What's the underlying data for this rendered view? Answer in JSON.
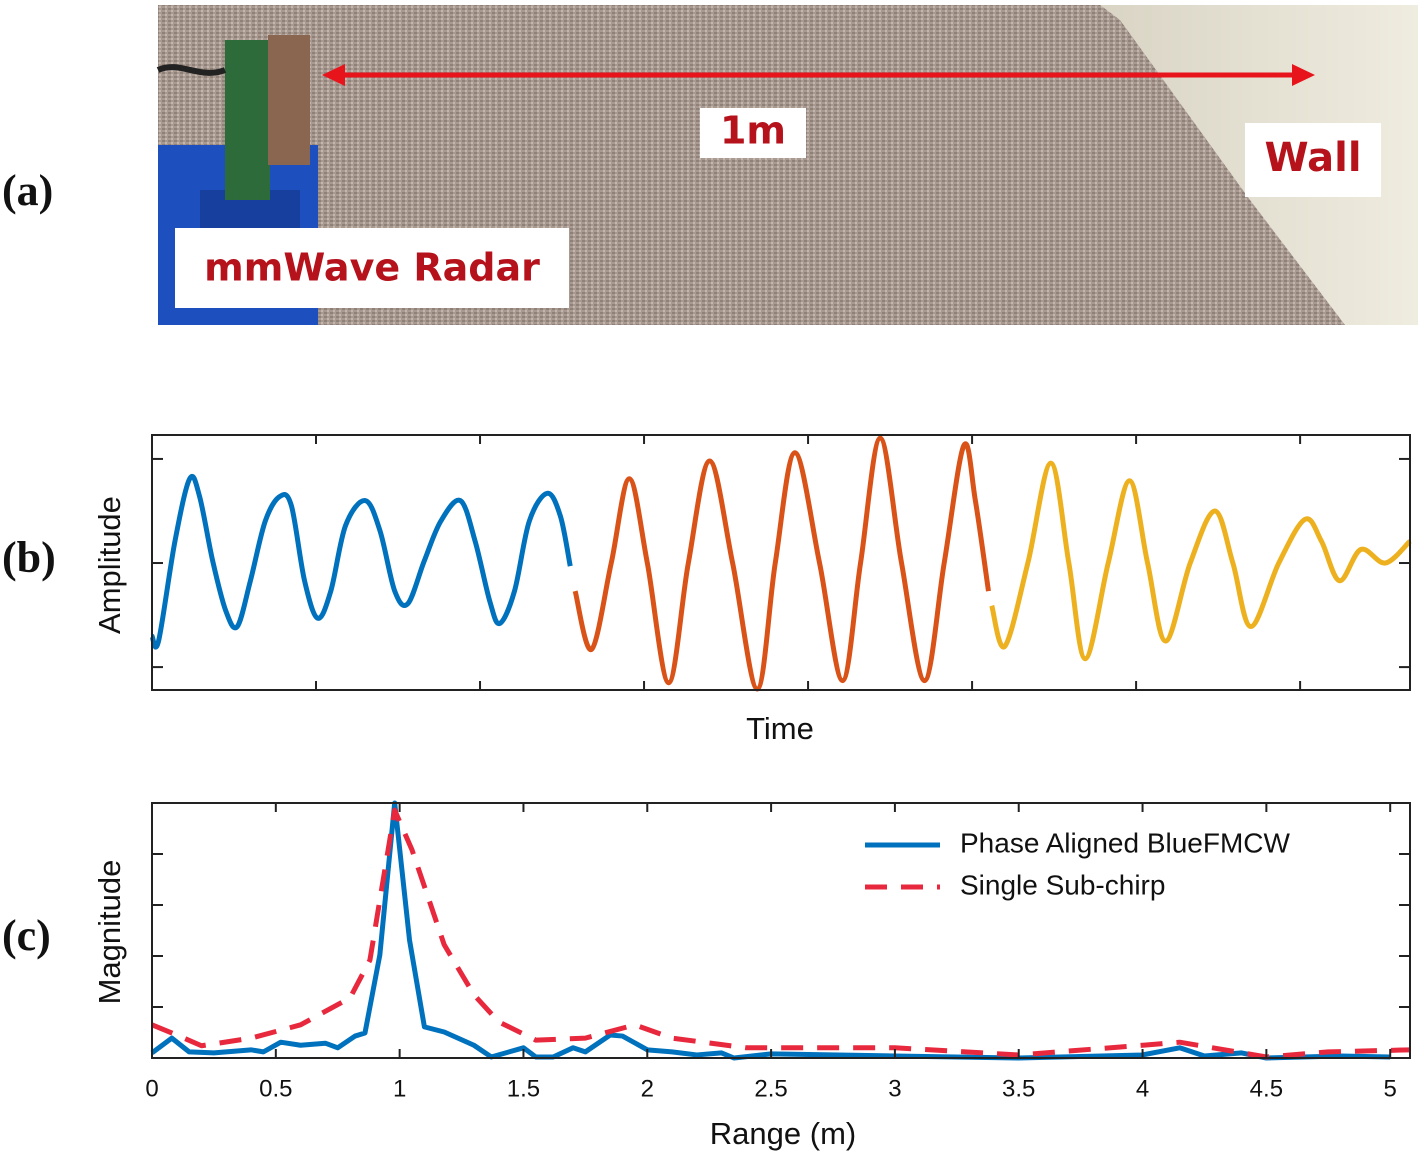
{
  "panel_labels": [
    "(a)",
    "(b)",
    "(c)"
  ],
  "photo": {
    "annotations": {
      "distance": "1m",
      "target": "Wall",
      "device": "mmWave Radar"
    }
  },
  "chart_data": [
    {
      "type": "line",
      "xlabel": "Time",
      "ylabel": "Amplitude",
      "xlim": [
        0,
        7.67
      ],
      "ylim": [
        -1.22,
        1.23
      ],
      "xticks": [
        1,
        2,
        3,
        4,
        5,
        6,
        7
      ],
      "yticks": [
        -1,
        0,
        1
      ],
      "xtick_labels": false,
      "ytick_labels": false,
      "series": [
        {
          "color": "#0072bd",
          "x": [
            0,
            0.04,
            0.14,
            0.23,
            0.29,
            0.37,
            0.45,
            0.52,
            0.6,
            0.69,
            0.78,
            0.85,
            0.93,
            1.01,
            1.09,
            1.18,
            1.3,
            1.39,
            1.48,
            1.56,
            1.66,
            1.76,
            1.88,
            1.97,
            2.06,
            2.12,
            2.21,
            2.3,
            2.41,
            2.49,
            2.55
          ],
          "values": [
            -0.7,
            -0.75,
            0.21,
            0.81,
            0.64,
            0.02,
            -0.46,
            -0.61,
            -0.17,
            0.4,
            0.64,
            0.55,
            -0.17,
            -0.53,
            -0.27,
            0.36,
            0.6,
            0.31,
            -0.27,
            -0.39,
            0.02,
            0.4,
            0.6,
            0.21,
            -0.37,
            -0.58,
            -0.27,
            0.4,
            0.67,
            0.45,
            -0.03
          ]
        },
        {
          "color": "#d95319",
          "x": [
            2.58,
            2.68,
            2.8,
            2.91,
            3.02,
            3.15,
            3.27,
            3.4,
            3.54,
            3.69,
            3.8,
            3.92,
            4.07,
            4.21,
            4.32,
            4.44,
            4.57,
            4.71,
            4.83,
            4.95,
            5.02,
            5.1
          ],
          "values": [
            -0.27,
            -0.83,
            0,
            0.81,
            0,
            -1.15,
            0,
            0.98,
            0,
            -1.21,
            0,
            1.06,
            0,
            -1.13,
            0,
            1.2,
            0,
            -1.13,
            0,
            1.13,
            0.6,
            -0.27
          ]
        },
        {
          "color": "#edb120",
          "x": [
            5.12,
            5.2,
            5.34,
            5.48,
            5.59,
            5.69,
            5.83,
            5.96,
            6.07,
            6.18,
            6.33,
            6.48,
            6.59,
            6.7,
            6.87,
            7.03,
            7.13,
            7.24,
            7.37,
            7.52,
            7.67
          ],
          "values": [
            -0.41,
            -0.8,
            0,
            0.96,
            0,
            -0.92,
            0,
            0.79,
            0,
            -0.75,
            0,
            0.5,
            0,
            -0.61,
            0,
            0.42,
            0.21,
            -0.17,
            0.13,
            0,
            0.21
          ]
        }
      ]
    },
    {
      "type": "line",
      "xlabel": "Range (m)",
      "ylabel": "Magnitude",
      "xlim": [
        0,
        5.08
      ],
      "ylim": [
        0,
        5
      ],
      "xticks": [
        0,
        0.5,
        1,
        1.5,
        2,
        2.5,
        3,
        3.5,
        4,
        4.5,
        5
      ],
      "yticks": [
        1,
        2,
        3,
        4
      ],
      "xtick_labels": true,
      "ytick_labels": false,
      "legend": "upper right",
      "series": [
        {
          "name": "Phase Aligned BlueFMCW",
          "color": "#0072bd",
          "style": "solid",
          "x": [
            0,
            0.08,
            0.15,
            0.25,
            0.4,
            0.45,
            0.52,
            0.6,
            0.7,
            0.75,
            0.82,
            0.86,
            0.92,
            0.98,
            1.04,
            1.1,
            1.18,
            1.3,
            1.37,
            1.5,
            1.55,
            1.62,
            1.7,
            1.75,
            1.85,
            1.9,
            2.0,
            2.1,
            2.2,
            2.3,
            2.35,
            2.5,
            3,
            3.5,
            4,
            4.15,
            4.25,
            4.4,
            4.5,
            4.8,
            5
          ],
          "values": [
            0.1,
            0.39,
            0.12,
            0.1,
            0.16,
            0.12,
            0.31,
            0.25,
            0.29,
            0.2,
            0.43,
            0.49,
            2.02,
            5.0,
            2.31,
            0.61,
            0.51,
            0.25,
            0.02,
            0.2,
            0.02,
            0.02,
            0.2,
            0.12,
            0.45,
            0.43,
            0.16,
            0.12,
            0.06,
            0.1,
            0,
            0.08,
            0.04,
            0,
            0.06,
            0.2,
            0.04,
            0.1,
            0,
            0.04,
            0.02
          ]
        },
        {
          "name": "Single Sub-chirp",
          "color": "#e8283c",
          "style": "dashed",
          "x": [
            0,
            0.1,
            0.2,
            0.4,
            0.6,
            0.8,
            0.88,
            0.98,
            1.05,
            1.18,
            1.3,
            1.4,
            1.55,
            1.75,
            1.95,
            2.1,
            2.4,
            3,
            3.5,
            4,
            4.15,
            4.5,
            4.75,
            5.08
          ],
          "values": [
            0.65,
            0.45,
            0.24,
            0.39,
            0.65,
            1.18,
            1.92,
            4.86,
            4.08,
            2.22,
            1.24,
            0.71,
            0.35,
            0.39,
            0.65,
            0.39,
            0.2,
            0.2,
            0.06,
            0.25,
            0.31,
            0.02,
            0.12,
            0.16
          ]
        }
      ]
    }
  ]
}
